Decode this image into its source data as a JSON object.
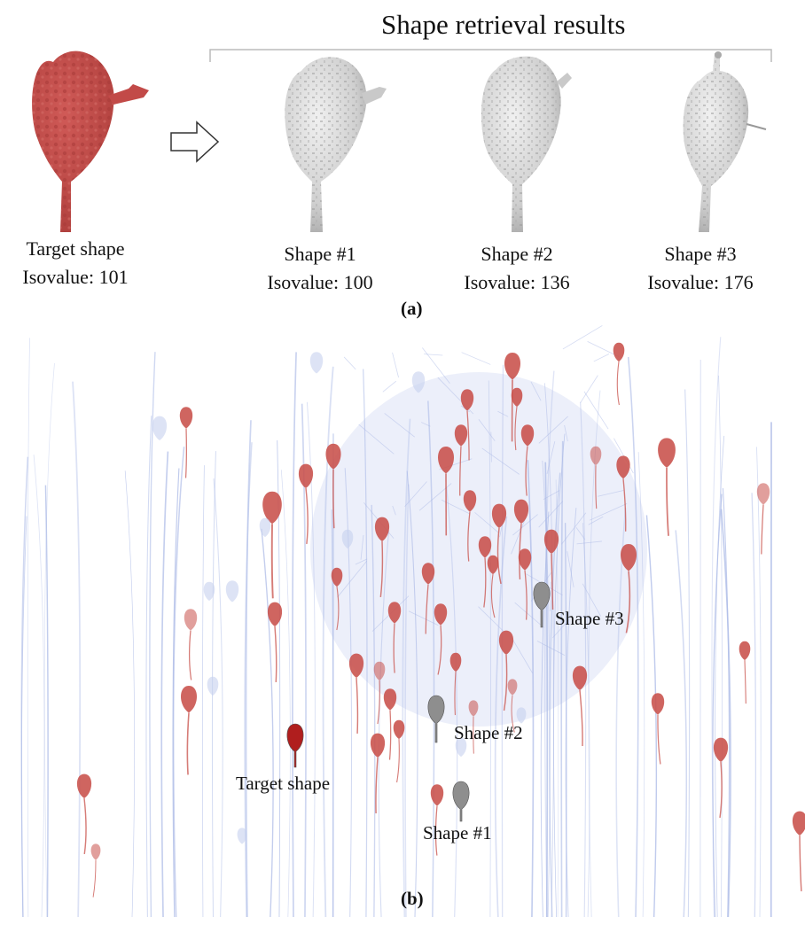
{
  "panel_a": {
    "header": "Shape retrieval results",
    "target": {
      "name": "Target shape",
      "isovalue": "Isovalue: 101"
    },
    "results": [
      {
        "name": "Shape #1",
        "isovalue": "Isovalue: 100"
      },
      {
        "name": "Shape #2",
        "isovalue": "Isovalue: 136"
      },
      {
        "name": "Shape #3",
        "isovalue": "Isovalue: 176"
      }
    ],
    "tag": "(a)"
  },
  "panel_b": {
    "callouts": {
      "target": "Target shape",
      "shape1": "Shape #1",
      "shape2": "Shape #2",
      "shape3": "Shape #3"
    },
    "tag": "(b)"
  },
  "colors": {
    "target_red": "#c24a48",
    "result_gray": "#dcdcdc",
    "neuron_red": "#c8504a",
    "fiber_blue": "#a9b8e6"
  }
}
